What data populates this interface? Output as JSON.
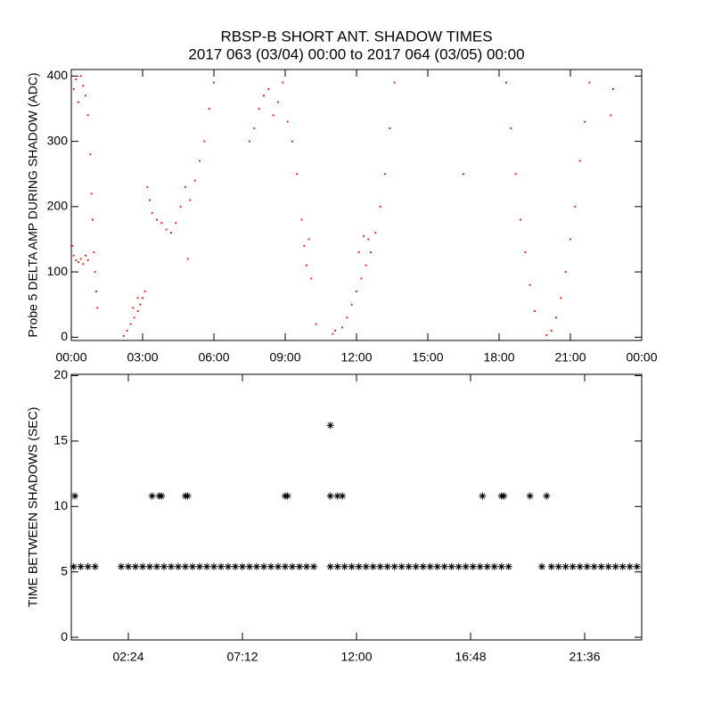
{
  "chart_data": [
    {
      "type": "scatter",
      "title": "RBSP-B SHORT ANT. SHADOW TIMES",
      "subtitle": "2017 063 (03/04) 00:00 to 2017 064 (03/05) 00:00",
      "y_label": "Probe 5 DELTA AMP DURING SHADOW (ADC)",
      "color": "#e0301e",
      "xlim": [
        0,
        24
      ],
      "ylim": [
        -5,
        410
      ],
      "xticks": [
        {
          "value": 0,
          "label": "00:00"
        },
        {
          "value": 3,
          "label": "03:00"
        },
        {
          "value": 6,
          "label": "06:00"
        },
        {
          "value": 9,
          "label": "09:00"
        },
        {
          "value": 12,
          "label": "12:00"
        },
        {
          "value": 15,
          "label": "15:00"
        },
        {
          "value": 18,
          "label": "18:00"
        },
        {
          "value": 21,
          "label": "21:00"
        },
        {
          "value": 24,
          "label": "00:00"
        }
      ],
      "yticks": [
        0,
        100,
        200,
        300,
        400
      ],
      "x": [
        0.05,
        0.1,
        0.2,
        0.3,
        0.4,
        0.5,
        0.6,
        0.7,
        0.1,
        0.2,
        0.3,
        0.4,
        0.5,
        0.6,
        0.7,
        0.8,
        0.85,
        0.9,
        0.95,
        1.0,
        1.05,
        1.1,
        2.2,
        2.35,
        2.5,
        2.65,
        2.8,
        2.9,
        3.0,
        3.1,
        2.6,
        2.8,
        3.2,
        3.3,
        3.4,
        3.6,
        3.8,
        4.0,
        4.2,
        4.4,
        4.6,
        4.8,
        4.9,
        5.0,
        5.2,
        5.4,
        5.6,
        5.8,
        6.0,
        7.5,
        7.7,
        7.9,
        8.1,
        8.3,
        8.5,
        8.7,
        8.9,
        9.1,
        9.3,
        9.5,
        9.7,
        9.8,
        9.9,
        10.0,
        10.1,
        10.3,
        11.0,
        11.1,
        11.4,
        11.6,
        11.8,
        12.0,
        12.2,
        12.4,
        12.6,
        12.8,
        13.0,
        13.2,
        13.4,
        13.6,
        12.1,
        12.3,
        12.5,
        16.5,
        18.3,
        18.5,
        18.7,
        18.9,
        19.1,
        19.3,
        19.5,
        20.0,
        20.2,
        20.4,
        20.6,
        20.8,
        21.0,
        21.2,
        21.4,
        21.6,
        21.8,
        22.7,
        22.8
      ],
      "values": [
        140,
        125,
        118,
        115,
        120,
        112,
        125,
        118,
        380,
        395,
        360,
        400,
        385,
        370,
        340,
        280,
        220,
        180,
        130,
        100,
        70,
        45,
        2,
        10,
        20,
        30,
        40,
        50,
        60,
        70,
        45,
        60,
        230,
        210,
        190,
        180,
        175,
        165,
        160,
        175,
        200,
        230,
        120,
        210,
        240,
        270,
        300,
        350,
        390,
        300,
        320,
        350,
        370,
        380,
        340,
        360,
        390,
        330,
        300,
        250,
        180,
        140,
        110,
        150,
        90,
        20,
        5,
        10,
        15,
        30,
        50,
        70,
        90,
        110,
        130,
        160,
        200,
        250,
        320,
        390,
        130,
        155,
        150,
        250,
        390,
        320,
        250,
        180,
        130,
        80,
        40,
        3,
        10,
        30,
        60,
        100,
        150,
        200,
        270,
        330,
        390,
        340,
        380
      ]
    },
    {
      "type": "scatter",
      "y_label": "TIME BETWEEN SHADOWS (SEC)",
      "color": "#000000",
      "xlim": [
        0,
        24
      ],
      "ylim": [
        -0.2,
        20.1
      ],
      "xticks": [
        {
          "value": 2.4,
          "label": "02:24"
        },
        {
          "value": 7.2,
          "label": "07:12"
        },
        {
          "value": 12,
          "label": "12:00"
        },
        {
          "value": 16.8,
          "label": "16:48"
        },
        {
          "value": 21.6,
          "label": "21:36"
        }
      ],
      "yticks": [
        0,
        5,
        10,
        15,
        20
      ],
      "x": [
        0.1,
        0.4,
        0.7,
        1.0,
        2.1,
        2.4,
        2.7,
        3.0,
        3.3,
        3.6,
        3.9,
        4.2,
        4.5,
        4.8,
        5.1,
        5.4,
        5.7,
        6.0,
        6.3,
        6.6,
        6.9,
        7.2,
        7.5,
        7.8,
        8.1,
        8.4,
        8.7,
        9.0,
        9.3,
        9.6,
        9.9,
        10.2,
        10.9,
        11.2,
        11.5,
        11.8,
        12.1,
        12.4,
        12.7,
        13.0,
        13.3,
        13.6,
        13.9,
        14.2,
        14.5,
        14.8,
        15.1,
        15.4,
        15.7,
        16.0,
        16.3,
        16.6,
        16.9,
        17.2,
        17.5,
        17.8,
        18.1,
        18.4,
        19.8,
        20.2,
        20.5,
        20.8,
        21.1,
        21.4,
        21.7,
        22.0,
        22.3,
        22.6,
        22.9,
        23.2,
        23.5,
        23.8,
        0.15,
        3.4,
        3.7,
        3.8,
        4.8,
        4.9,
        9.0,
        9.1,
        10.9,
        11.2,
        11.4,
        17.3,
        18.1,
        18.2,
        19.3,
        20.0,
        10.9
      ],
      "values": [
        5.4,
        5.4,
        5.4,
        5.4,
        5.4,
        5.4,
        5.4,
        5.4,
        5.4,
        5.4,
        5.4,
        5.4,
        5.4,
        5.4,
        5.4,
        5.4,
        5.4,
        5.4,
        5.4,
        5.4,
        5.4,
        5.4,
        5.4,
        5.4,
        5.4,
        5.4,
        5.4,
        5.4,
        5.4,
        5.4,
        5.4,
        5.4,
        5.4,
        5.4,
        5.4,
        5.4,
        5.4,
        5.4,
        5.4,
        5.4,
        5.4,
        5.4,
        5.4,
        5.4,
        5.4,
        5.4,
        5.4,
        5.4,
        5.4,
        5.4,
        5.4,
        5.4,
        5.4,
        5.4,
        5.4,
        5.4,
        5.4,
        5.4,
        5.4,
        5.4,
        5.4,
        5.4,
        5.4,
        5.4,
        5.4,
        5.4,
        5.4,
        5.4,
        5.4,
        5.4,
        5.4,
        5.4,
        10.8,
        10.8,
        10.8,
        10.8,
        10.8,
        10.8,
        10.8,
        10.8,
        10.8,
        10.8,
        10.8,
        10.8,
        10.8,
        10.8,
        10.8,
        10.8,
        16.2
      ]
    }
  ]
}
